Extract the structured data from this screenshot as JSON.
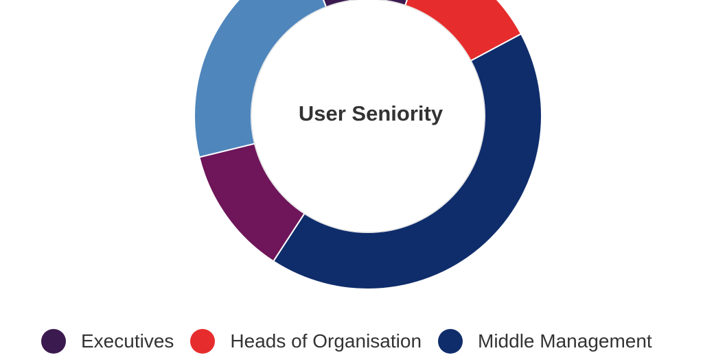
{
  "chart_data": {
    "type": "pie",
    "title": "User Seniority",
    "series": [
      {
        "name": "",
        "slices": [
          {
            "label": "Executives",
            "value": 11,
            "color": "#3b1a4f"
          },
          {
            "label": "Heads of Organisation",
            "value": 12,
            "color": "#e62c2c"
          },
          {
            "label": "Middle Management",
            "value": 42,
            "color": "#0f2d6b"
          },
          {
            "label": "",
            "value": 12,
            "color": "#6e1659"
          },
          {
            "label": "",
            "value": 23,
            "color": "#4f86bc"
          }
        ]
      }
    ],
    "legend": {
      "placement": "bottom",
      "entries": [
        {
          "label": "Executives",
          "color": "#3b1a4f"
        },
        {
          "label": "Heads of Organisation",
          "color": "#e62c2c"
        },
        {
          "label": "Middle Management",
          "color": "#0f2d6b"
        }
      ]
    }
  }
}
